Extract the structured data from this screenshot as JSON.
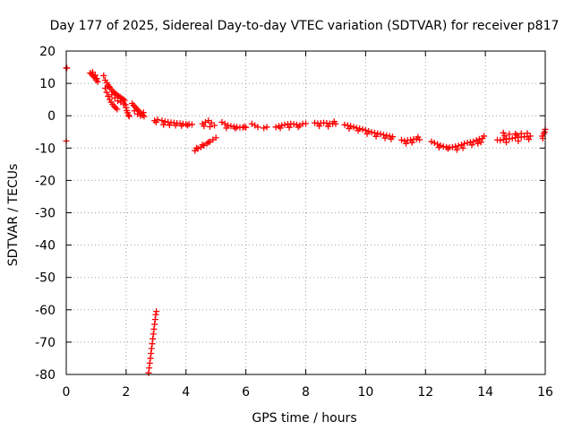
{
  "chart_data": {
    "type": "scatter",
    "title": "Day 177 of 2025, Sidereal Day-to-day VTEC variation (SDTVAR) for receiver p817",
    "xlabel": "GPS time / hours",
    "ylabel": "SDTVAR / TECUs",
    "xlim": [
      0,
      16
    ],
    "ylim": [
      -80,
      20
    ],
    "xticks": [
      "0",
      "2",
      "4",
      "6",
      "8",
      "10",
      "12",
      "14",
      "16"
    ],
    "yticks": [
      "20",
      "10",
      "0",
      "-10",
      "-20",
      "-30",
      "-40",
      "-50",
      "-60",
      "-70",
      "-80"
    ],
    "grid": true,
    "marker": "plus",
    "series": [
      {
        "name": "p817",
        "color": "#ff0000",
        "points": [
          [
            0.0,
            14.7
          ],
          [
            0.02,
            14.8
          ],
          [
            0.0,
            -7.8
          ],
          [
            0.8,
            13.2
          ],
          [
            0.85,
            12.8
          ],
          [
            0.9,
            12.2
          ],
          [
            0.95,
            11.8
          ],
          [
            1.0,
            11.0
          ],
          [
            0.88,
            13.5
          ],
          [
            0.97,
            12.5
          ],
          [
            1.02,
            11.5
          ],
          [
            1.05,
            10.5
          ],
          [
            1.25,
            12.4
          ],
          [
            1.3,
            11.0
          ],
          [
            1.35,
            10.2
          ],
          [
            1.4,
            9.5
          ],
          [
            1.45,
            8.8
          ],
          [
            1.5,
            8.2
          ],
          [
            1.55,
            7.6
          ],
          [
            1.6,
            7.2
          ],
          [
            1.65,
            6.8
          ],
          [
            1.7,
            6.4
          ],
          [
            1.75,
            6.1
          ],
          [
            1.8,
            5.8
          ],
          [
            1.85,
            5.4
          ],
          [
            1.9,
            5.1
          ],
          [
            1.95,
            4.8
          ],
          [
            1.3,
            8.5
          ],
          [
            1.35,
            7.2
          ],
          [
            1.4,
            6.0
          ],
          [
            1.45,
            5.0
          ],
          [
            1.5,
            4.2
          ],
          [
            1.55,
            3.5
          ],
          [
            1.6,
            2.9
          ],
          [
            1.65,
            2.4
          ],
          [
            1.7,
            2.0
          ],
          [
            1.42,
            9.0
          ],
          [
            1.52,
            6.5
          ],
          [
            1.62,
            5.5
          ],
          [
            1.72,
            4.6
          ],
          [
            1.82,
            4.2
          ],
          [
            1.92,
            3.7
          ],
          [
            1.98,
            3.4
          ],
          [
            2.0,
            2.5
          ],
          [
            2.02,
            1.6
          ],
          [
            2.05,
            0.9
          ],
          [
            2.08,
            0.2
          ],
          [
            2.1,
            -0.2
          ],
          [
            2.2,
            3.8
          ],
          [
            2.25,
            3.2
          ],
          [
            2.3,
            2.7
          ],
          [
            2.35,
            2.2
          ],
          [
            2.4,
            1.7
          ],
          [
            2.45,
            1.2
          ],
          [
            2.5,
            0.7
          ],
          [
            2.55,
            0.2
          ],
          [
            2.6,
            -0.2
          ],
          [
            2.28,
            1.5
          ],
          [
            2.38,
            0.5
          ],
          [
            2.48,
            0.0
          ],
          [
            2.58,
            1.0
          ],
          [
            2.75,
            -79.5
          ],
          [
            2.77,
            -78.0
          ],
          [
            2.79,
            -76.5
          ],
          [
            2.81,
            -75.0
          ],
          [
            2.83,
            -73.5
          ],
          [
            2.85,
            -72.0
          ],
          [
            2.87,
            -70.5
          ],
          [
            2.89,
            -69.0
          ],
          [
            2.91,
            -67.5
          ],
          [
            2.93,
            -66.0
          ],
          [
            2.95,
            -64.5
          ],
          [
            2.97,
            -63.0
          ],
          [
            2.99,
            -61.5
          ],
          [
            3.01,
            -60.5
          ],
          [
            2.95,
            -1.5
          ],
          [
            3.0,
            -2.0
          ],
          [
            3.05,
            -1.2
          ],
          [
            3.2,
            -1.5
          ],
          [
            3.3,
            -1.8
          ],
          [
            3.4,
            -2.0
          ],
          [
            3.5,
            -2.1
          ],
          [
            3.6,
            -2.2
          ],
          [
            3.7,
            -2.3
          ],
          [
            3.8,
            -2.4
          ],
          [
            3.9,
            -2.5
          ],
          [
            4.0,
            -2.6
          ],
          [
            4.1,
            -2.6
          ],
          [
            4.2,
            -2.7
          ],
          [
            3.25,
            -2.8
          ],
          [
            3.45,
            -2.9
          ],
          [
            3.65,
            -3.0
          ],
          [
            3.85,
            -3.1
          ],
          [
            4.05,
            -3.0
          ],
          [
            4.3,
            -10.8
          ],
          [
            4.4,
            -10.2
          ],
          [
            4.5,
            -9.7
          ],
          [
            4.6,
            -9.2
          ],
          [
            4.7,
            -8.6
          ],
          [
            4.8,
            -8.0
          ],
          [
            4.9,
            -7.4
          ],
          [
            5.0,
            -6.8
          ],
          [
            4.35,
            -10.0
          ],
          [
            4.55,
            -9.0
          ],
          [
            4.75,
            -8.2
          ],
          [
            4.55,
            -2.5
          ],
          [
            4.65,
            -2.0
          ],
          [
            4.75,
            -1.5
          ],
          [
            4.85,
            -2.2
          ],
          [
            4.95,
            -3.0
          ],
          [
            4.6,
            -3.2
          ],
          [
            4.8,
            -3.4
          ],
          [
            5.2,
            -2.0
          ],
          [
            5.3,
            -2.5
          ],
          [
            5.4,
            -3.0
          ],
          [
            5.5,
            -3.2
          ],
          [
            5.6,
            -3.4
          ],
          [
            5.7,
            -3.5
          ],
          [
            5.8,
            -3.6
          ],
          [
            5.9,
            -3.6
          ],
          [
            6.0,
            -3.6
          ],
          [
            5.35,
            -3.8
          ],
          [
            5.65,
            -3.9
          ],
          [
            5.95,
            -3.4
          ],
          [
            6.2,
            -2.5
          ],
          [
            6.3,
            -3.0
          ],
          [
            6.4,
            -3.5
          ],
          [
            6.6,
            -3.8
          ],
          [
            6.7,
            -3.5
          ],
          [
            7.0,
            -3.5
          ],
          [
            7.1,
            -3.2
          ],
          [
            7.2,
            -3.0
          ],
          [
            7.3,
            -2.8
          ],
          [
            7.4,
            -2.6
          ],
          [
            7.5,
            -2.5
          ],
          [
            7.6,
            -2.6
          ],
          [
            7.7,
            -2.8
          ],
          [
            7.8,
            -3.0
          ],
          [
            7.9,
            -2.5
          ],
          [
            8.0,
            -2.4
          ],
          [
            7.15,
            -3.8
          ],
          [
            7.45,
            -3.6
          ],
          [
            7.75,
            -3.5
          ],
          [
            8.3,
            -2.2
          ],
          [
            8.4,
            -2.4
          ],
          [
            8.5,
            -2.3
          ],
          [
            8.6,
            -2.2
          ],
          [
            8.7,
            -2.3
          ],
          [
            8.8,
            -2.4
          ],
          [
            8.9,
            -2.5
          ],
          [
            9.0,
            -2.5
          ],
          [
            8.45,
            -3.2
          ],
          [
            8.75,
            -3.3
          ],
          [
            8.95,
            -1.8
          ],
          [
            9.3,
            -2.8
          ],
          [
            9.4,
            -3.0
          ],
          [
            9.5,
            -3.2
          ],
          [
            9.6,
            -3.5
          ],
          [
            9.7,
            -3.8
          ],
          [
            9.8,
            -4.0
          ],
          [
            9.9,
            -4.2
          ],
          [
            10.0,
            -4.5
          ],
          [
            10.1,
            -4.8
          ],
          [
            10.2,
            -5.1
          ],
          [
            10.3,
            -5.3
          ],
          [
            10.4,
            -5.5
          ],
          [
            10.5,
            -5.7
          ],
          [
            10.6,
            -5.9
          ],
          [
            10.7,
            -6.1
          ],
          [
            10.8,
            -6.3
          ],
          [
            10.9,
            -6.5
          ],
          [
            9.45,
            -4.0
          ],
          [
            9.75,
            -4.6
          ],
          [
            10.05,
            -5.6
          ],
          [
            10.35,
            -6.4
          ],
          [
            10.65,
            -6.9
          ],
          [
            10.85,
            -7.2
          ],
          [
            11.2,
            -7.5
          ],
          [
            11.3,
            -7.8
          ],
          [
            11.4,
            -7.6
          ],
          [
            11.5,
            -7.5
          ],
          [
            11.6,
            -7.3
          ],
          [
            11.7,
            -7.2
          ],
          [
            11.8,
            -7.4
          ],
          [
            11.35,
            -8.6
          ],
          [
            11.55,
            -8.3
          ],
          [
            11.75,
            -6.6
          ],
          [
            12.2,
            -8.0
          ],
          [
            12.3,
            -8.4
          ],
          [
            12.4,
            -8.8
          ],
          [
            12.5,
            -9.2
          ],
          [
            12.6,
            -9.5
          ],
          [
            12.7,
            -9.7
          ],
          [
            12.8,
            -9.8
          ],
          [
            12.9,
            -9.7
          ],
          [
            13.0,
            -9.5
          ],
          [
            13.1,
            -9.3
          ],
          [
            13.2,
            -9.0
          ],
          [
            13.3,
            -8.6
          ],
          [
            12.45,
            -9.8
          ],
          [
            12.75,
            -10.2
          ],
          [
            13.05,
            -10.5
          ],
          [
            13.25,
            -10.0
          ],
          [
            13.4,
            -8.4
          ],
          [
            13.5,
            -8.2
          ],
          [
            13.6,
            -8.0
          ],
          [
            13.7,
            -7.6
          ],
          [
            13.8,
            -7.2
          ],
          [
            13.9,
            -7.0
          ],
          [
            13.55,
            -9.0
          ],
          [
            13.75,
            -8.6
          ],
          [
            13.95,
            -6.3
          ],
          [
            13.85,
            -8.2
          ],
          [
            14.4,
            -7.5
          ],
          [
            14.5,
            -7.6
          ],
          [
            14.6,
            -7.4
          ],
          [
            14.7,
            -7.2
          ],
          [
            14.8,
            -7.1
          ],
          [
            14.9,
            -7.0
          ],
          [
            15.0,
            -6.8
          ],
          [
            15.1,
            -6.7
          ],
          [
            15.2,
            -6.6
          ],
          [
            15.3,
            -6.5
          ],
          [
            15.4,
            -6.4
          ],
          [
            15.5,
            -6.3
          ],
          [
            14.6,
            -5.3
          ],
          [
            14.8,
            -5.7
          ],
          [
            15.0,
            -5.6
          ],
          [
            15.2,
            -5.5
          ],
          [
            15.4,
            -5.4
          ],
          [
            14.7,
            -8.2
          ],
          [
            15.1,
            -7.8
          ],
          [
            15.45,
            -7.3
          ],
          [
            14.65,
            -6.2
          ],
          [
            15.05,
            -6.0
          ],
          [
            15.9,
            -6.3
          ],
          [
            15.95,
            -5.5
          ],
          [
            16.0,
            -4.2
          ],
          [
            15.92,
            -7.0
          ],
          [
            15.98,
            -5.0
          ]
        ]
      }
    ]
  }
}
